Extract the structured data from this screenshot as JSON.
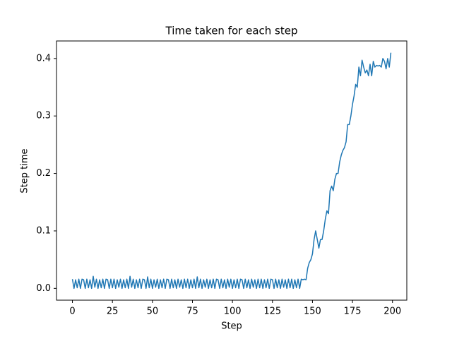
{
  "chart_data": {
    "type": "line",
    "title": "Time taken for each step",
    "x_label": "Step",
    "y_label": "Step time",
    "x": [
      0,
      1,
      2,
      3,
      4,
      5,
      6,
      7,
      8,
      9,
      10,
      11,
      12,
      13,
      14,
      15,
      16,
      17,
      18,
      19,
      20,
      21,
      22,
      23,
      24,
      25,
      26,
      27,
      28,
      29,
      30,
      31,
      32,
      33,
      34,
      35,
      36,
      37,
      38,
      39,
      40,
      41,
      42,
      43,
      44,
      45,
      46,
      47,
      48,
      49,
      50,
      51,
      52,
      53,
      54,
      55,
      56,
      57,
      58,
      59,
      60,
      61,
      62,
      63,
      64,
      65,
      66,
      67,
      68,
      69,
      70,
      71,
      72,
      73,
      74,
      75,
      76,
      77,
      78,
      79,
      80,
      81,
      82,
      83,
      84,
      85,
      86,
      87,
      88,
      89,
      90,
      91,
      92,
      93,
      94,
      95,
      96,
      97,
      98,
      99,
      100,
      101,
      102,
      103,
      104,
      105,
      106,
      107,
      108,
      109,
      110,
      111,
      112,
      113,
      114,
      115,
      116,
      117,
      118,
      119,
      120,
      121,
      122,
      123,
      124,
      125,
      126,
      127,
      128,
      129,
      130,
      131,
      132,
      133,
      134,
      135,
      136,
      137,
      138,
      139,
      140,
      141,
      142,
      143,
      144,
      145,
      146,
      147,
      148,
      149,
      150,
      151,
      152,
      153,
      154,
      155,
      156,
      157,
      158,
      159,
      160,
      161,
      162,
      163,
      164,
      165,
      166,
      167,
      168,
      169,
      170,
      171,
      172,
      173,
      174,
      175,
      176,
      177,
      178,
      179,
      180,
      181,
      182,
      183,
      184,
      185,
      186,
      187,
      188,
      189,
      190,
      191,
      192,
      193,
      194,
      195,
      196,
      197,
      198,
      199
    ],
    "series": [
      {
        "color": "#1f77b4",
        "values": [
          0.016,
          0.0,
          0.015,
          0.001,
          0.016,
          0.0,
          0.016,
          0.015,
          0.0,
          0.016,
          0.001,
          0.015,
          0.0,
          0.021,
          0.002,
          0.016,
          0.0,
          0.015,
          0.001,
          0.016,
          0.0,
          0.016,
          0.015,
          0.0,
          0.016,
          0.001,
          0.016,
          0.0,
          0.015,
          0.002,
          0.016,
          0.0,
          0.015,
          0.001,
          0.016,
          0.0,
          0.021,
          0.002,
          0.016,
          0.0,
          0.015,
          0.001,
          0.016,
          0.0,
          0.016,
          0.015,
          0.0,
          0.02,
          0.001,
          0.016,
          0.0,
          0.015,
          0.002,
          0.016,
          0.0,
          0.015,
          0.001,
          0.016,
          0.0,
          0.016,
          0.015,
          0.0,
          0.016,
          0.001,
          0.015,
          0.0,
          0.016,
          0.002,
          0.015,
          0.0,
          0.016,
          0.001,
          0.016,
          0.0,
          0.015,
          0.001,
          0.016,
          0.0,
          0.02,
          0.001,
          0.016,
          0.0,
          0.015,
          0.002,
          0.016,
          0.0,
          0.015,
          0.001,
          0.016,
          0.0,
          0.016,
          0.015,
          0.0,
          0.016,
          0.001,
          0.015,
          0.0,
          0.016,
          0.002,
          0.016,
          0.0,
          0.015,
          0.001,
          0.016,
          0.0,
          0.016,
          0.015,
          0.0,
          0.016,
          0.001,
          0.015,
          0.0,
          0.016,
          0.002,
          0.015,
          0.0,
          0.016,
          0.001,
          0.016,
          0.0,
          0.015,
          0.001,
          0.016,
          0.0,
          0.016,
          0.015,
          0.0,
          0.016,
          0.001,
          0.015,
          0.0,
          0.016,
          0.002,
          0.015,
          0.0,
          0.016,
          0.001,
          0.016,
          0.0,
          0.015,
          0.001,
          0.016,
          0.0,
          0.016,
          0.015,
          0.016,
          0.015,
          0.035,
          0.045,
          0.05,
          0.06,
          0.085,
          0.1,
          0.085,
          0.07,
          0.085,
          0.085,
          0.1,
          0.12,
          0.135,
          0.13,
          0.17,
          0.178,
          0.17,
          0.19,
          0.2,
          0.2,
          0.22,
          0.232,
          0.24,
          0.245,
          0.255,
          0.285,
          0.285,
          0.3,
          0.32,
          0.335,
          0.355,
          0.35,
          0.385,
          0.37,
          0.397,
          0.385,
          0.375,
          0.38,
          0.37,
          0.39,
          0.37,
          0.395,
          0.385,
          0.388,
          0.387,
          0.388,
          0.385,
          0.4,
          0.395,
          0.382,
          0.4,
          0.385,
          0.41
        ]
      }
    ],
    "xlim": [
      -9.95,
      208.95
    ],
    "xticks": [
      0,
      25,
      50,
      75,
      100,
      125,
      150,
      175,
      200
    ],
    "ylim": [
      -0.0205,
      0.4305
    ],
    "yticks": [
      {
        "value": 0,
        "label": "0.0"
      },
      0.1,
      0.2,
      0.3,
      0.4
    ]
  }
}
